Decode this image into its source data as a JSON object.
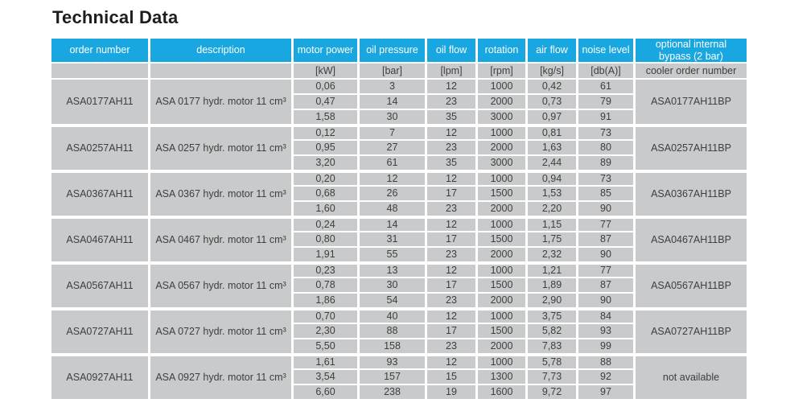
{
  "page": {
    "title": "Technical Data"
  },
  "colors": {
    "header_bg": "#18a7e0",
    "header_text": "#ffffff",
    "cell_bg": "#c9cacb",
    "cell_text": "#3e3e3e",
    "title_text": "#1d1d1b"
  },
  "table": {
    "columns": [
      {
        "label": "order number",
        "unit": ""
      },
      {
        "label": "description",
        "unit": ""
      },
      {
        "label": "motor power",
        "unit": "[kW]"
      },
      {
        "label": "oil pressure",
        "unit": "[bar]"
      },
      {
        "label": "oil flow",
        "unit": "[lpm]"
      },
      {
        "label": "rotation",
        "unit": "[rpm]"
      },
      {
        "label": "air flow",
        "unit": "[kg/s]"
      },
      {
        "label": "noise level",
        "unit": "[db(A)]"
      },
      {
        "label": "optional internal bypass (2 bar)",
        "unit": "cooler order number"
      }
    ],
    "groups": [
      {
        "order_number": "ASA0177AH11",
        "description": "ASA 0177 hydr. motor 11 cm³",
        "cooler_order_number": "ASA0177AH11BP",
        "rows": [
          [
            "0,06",
            "3",
            "12",
            "1000",
            "0,42",
            "61"
          ],
          [
            "0,47",
            "14",
            "23",
            "2000",
            "0,73",
            "79"
          ],
          [
            "1,58",
            "30",
            "35",
            "3000",
            "0,97",
            "91"
          ]
        ]
      },
      {
        "order_number": "ASA0257AH11",
        "description": "ASA 0257 hydr. motor 11 cm³",
        "cooler_order_number": "ASA0257AH11BP",
        "rows": [
          [
            "0,12",
            "7",
            "12",
            "1000",
            "0,81",
            "73"
          ],
          [
            "0,95",
            "27",
            "23",
            "2000",
            "1,63",
            "80"
          ],
          [
            "3,20",
            "61",
            "35",
            "3000",
            "2,44",
            "89"
          ]
        ]
      },
      {
        "order_number": "ASA0367AH11",
        "description": "ASA 0367 hydr. motor 11 cm³",
        "cooler_order_number": "ASA0367AH11BP",
        "rows": [
          [
            "0,20",
            "12",
            "12",
            "1000",
            "0,94",
            "73"
          ],
          [
            "0,68",
            "26",
            "17",
            "1500",
            "1,53",
            "85"
          ],
          [
            "1,60",
            "48",
            "23",
            "2000",
            "2,20",
            "90"
          ]
        ]
      },
      {
        "order_number": "ASA0467AH11",
        "description": "ASA 0467 hydr. motor 11 cm³",
        "cooler_order_number": "ASA0467AH11BP",
        "rows": [
          [
            "0,24",
            "14",
            "12",
            "1000",
            "1,15",
            "77"
          ],
          [
            "0,80",
            "31",
            "17",
            "1500",
            "1,75",
            "87"
          ],
          [
            "1,91",
            "55",
            "23",
            "2000",
            "2,32",
            "90"
          ]
        ]
      },
      {
        "order_number": "ASA0567AH11",
        "description": "ASA 0567 hydr. motor 11 cm³",
        "cooler_order_number": "ASA0567AH11BP",
        "rows": [
          [
            "0,23",
            "13",
            "12",
            "1000",
            "1,21",
            "77"
          ],
          [
            "0,78",
            "30",
            "17",
            "1500",
            "1,89",
            "87"
          ],
          [
            "1,86",
            "54",
            "23",
            "2000",
            "2,90",
            "90"
          ]
        ]
      },
      {
        "order_number": "ASA0727AH11",
        "description": "ASA 0727 hydr. motor 11 cm³",
        "cooler_order_number": "ASA0727AH11BP",
        "rows": [
          [
            "0,70",
            "40",
            "12",
            "1000",
            "3,75",
            "84"
          ],
          [
            "2,30",
            "88",
            "17",
            "1500",
            "5,82",
            "93"
          ],
          [
            "5,50",
            "158",
            "23",
            "2000",
            "7,83",
            "99"
          ]
        ]
      },
      {
        "order_number": "ASA0927AH11",
        "description": "ASA 0927 hydr. motor 11 cm³",
        "cooler_order_number": "not available",
        "rows": [
          [
            "1,61",
            "93",
            "12",
            "1000",
            "5,78",
            "88"
          ],
          [
            "3,54",
            "157",
            "15",
            "1300",
            "7,73",
            "92"
          ],
          [
            "6,60",
            "238",
            "19",
            "1600",
            "9,72",
            "97"
          ]
        ]
      }
    ]
  }
}
